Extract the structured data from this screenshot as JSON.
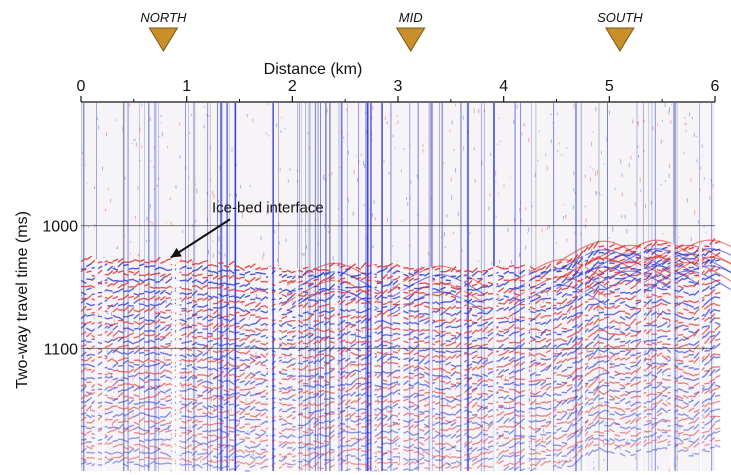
{
  "chart_data": {
    "type": "seismic-radargram",
    "title": "",
    "xlabel": "Distance (km)",
    "ylabel": "Two-way travel time (ms)",
    "xlim": [
      0,
      6
    ],
    "ylim": [
      1200,
      900
    ],
    "x_ticks": [
      0,
      1,
      2,
      3,
      4,
      5,
      6
    ],
    "x_tick_labels": [
      "0",
      "1",
      "2",
      "3",
      "4",
      "5",
      "6"
    ],
    "y_ticks": [
      1000,
      1100
    ],
    "y_tick_labels": [
      "1000",
      "1100"
    ],
    "grid": "horizontal lines at 1000 and 1100 ms",
    "markers": [
      {
        "label": "NORTH",
        "x": 0.78
      },
      {
        "label": "MID",
        "x": 3.12
      },
      {
        "label": "SOUTH",
        "x": 5.1
      }
    ],
    "marker_color": "#c9902a",
    "annotation": {
      "text": "Ice-bed interface",
      "x": 1.24,
      "y": 985,
      "arrow_to": [
        0.85,
        1026
      ]
    },
    "ice_bed_interface": {
      "x": [
        0,
        0.5,
        1.0,
        1.5,
        2.0,
        2.5,
        3.0,
        3.5,
        3.8,
        4.0,
        4.3,
        4.6,
        4.9,
        5.2,
        5.5,
        5.8,
        6.0
      ],
      "y": [
        1027,
        1027,
        1028,
        1031,
        1035,
        1032,
        1031,
        1036,
        1034,
        1032,
        1033,
        1029,
        1014,
        1018,
        1013,
        1019,
        1012
      ]
    },
    "colors": {
      "positive": "#e0302a",
      "negative": "#2a36d8",
      "background": "#f7f4f8"
    }
  }
}
